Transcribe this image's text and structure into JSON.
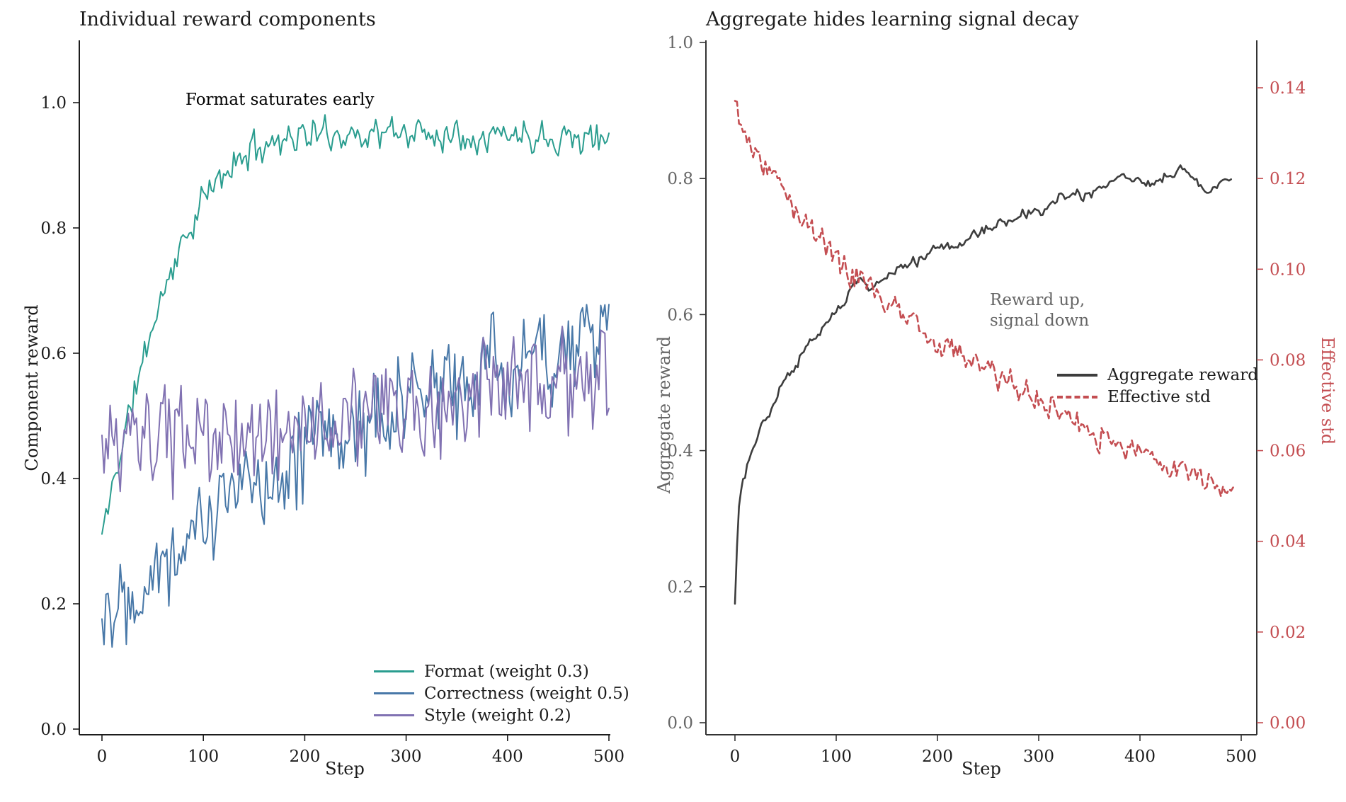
{
  "left_panel": {
    "title": "Individual reward components",
    "xlabel": "Step",
    "ylabel": "Component reward",
    "annotation": {
      "text": "Format saturates early",
      "color": "#2a9d8f"
    },
    "x_tick_labels": [
      "0",
      "100",
      "200",
      "300",
      "400",
      "500"
    ],
    "x_tick_values": [
      0,
      100,
      200,
      300,
      400,
      500
    ],
    "y_tick_labels": [
      "0.0",
      "0.2",
      "0.4",
      "0.6",
      "0.8",
      "1.0"
    ],
    "y_tick_values": [
      0.0,
      0.2,
      0.4,
      0.6,
      0.8,
      1.0
    ],
    "legend": [
      {
        "label": "Format (weight 0.3)",
        "color": "#2a9d8f",
        "dash": false
      },
      {
        "label": "Correctness (weight 0.5)",
        "color": "#4878a8",
        "dash": false
      },
      {
        "label": "Style (weight 0.2)",
        "color": "#8172b2",
        "dash": false
      }
    ]
  },
  "right_panel": {
    "title": "Aggregate hides learning signal decay",
    "xlabel": "Step",
    "ylabel_left": "Aggregate reward",
    "ylabel_right": "Effective std",
    "annotation": {
      "text": "Reward up,\nsignal down",
      "color": "#666666"
    },
    "x_tick_labels": [
      "0",
      "100",
      "200",
      "300",
      "400",
      "500"
    ],
    "x_tick_values": [
      0,
      100,
      200,
      300,
      400,
      500
    ],
    "y_left_tick_labels": [
      "0.0",
      "0.2",
      "0.4",
      "0.6",
      "0.8",
      "1.0"
    ],
    "y_left_tick_values": [
      0.0,
      0.2,
      0.4,
      0.6,
      0.8,
      1.0
    ],
    "y_right_tick_labels": [
      "0.00",
      "0.02",
      "0.04",
      "0.06",
      "0.08",
      "0.10",
      "0.12",
      "0.14"
    ],
    "y_right_tick_values": [
      0.0,
      0.02,
      0.04,
      0.06,
      0.08,
      0.1,
      0.12,
      0.14
    ],
    "legend": [
      {
        "label": "Aggregate reward",
        "color": "#3d3d3d",
        "dash": false
      },
      {
        "label": "Effective std",
        "color": "#c44e52",
        "dash": true
      }
    ]
  },
  "colors": {
    "format": "#2a9d8f",
    "correctness": "#4878a8",
    "style": "#8172b2",
    "aggregate": "#3d3d3d",
    "effective_std": "#c44e52",
    "gray_text": "#666666",
    "black_text": "#1c1c1c",
    "spine": "#1c1c1c"
  },
  "chart_data": [
    {
      "type": "line",
      "title": "Individual reward components",
      "xlabel": "Step",
      "ylabel": "Component reward",
      "xlim": [
        -22,
        501
      ],
      "ylim": [
        0.0,
        1.1
      ],
      "grid": false,
      "legend_position": "lower right",
      "series": [
        {
          "name": "Format (weight 0.3)",
          "color": "#2a9d8f",
          "style": "solid",
          "noise_amp": 0.032,
          "noise_rho": 0.2,
          "seed": 11,
          "clamp_max": 0.995,
          "x": [
            0,
            5,
            10,
            15,
            20,
            25,
            30,
            35,
            40,
            45,
            50,
            60,
            70,
            80,
            90,
            100,
            110,
            120,
            130,
            140,
            150,
            160,
            170,
            180,
            200,
            250,
            300,
            350,
            400,
            450,
            500
          ],
          "y": [
            0.31,
            0.345,
            0.385,
            0.42,
            0.455,
            0.49,
            0.525,
            0.555,
            0.585,
            0.615,
            0.645,
            0.695,
            0.74,
            0.775,
            0.81,
            0.845,
            0.865,
            0.885,
            0.9,
            0.915,
            0.925,
            0.935,
            0.94,
            0.945,
            0.948,
            0.95,
            0.952,
            0.95,
            0.95,
            0.948,
            0.94
          ]
        },
        {
          "name": "Correctness (weight 0.5)",
          "color": "#4878a8",
          "style": "solid",
          "noise_amp": 0.1,
          "noise_rho": 0.15,
          "seed": 22,
          "clamp_max": 1.0,
          "x": [
            0,
            10,
            20,
            30,
            40,
            50,
            60,
            80,
            100,
            125,
            150,
            175,
            200,
            225,
            250,
            275,
            300,
            325,
            350,
            375,
            400,
            425,
            450,
            475,
            500
          ],
          "y": [
            0.19,
            0.21,
            0.225,
            0.235,
            0.25,
            0.26,
            0.27,
            0.3,
            0.335,
            0.365,
            0.395,
            0.42,
            0.445,
            0.465,
            0.485,
            0.5,
            0.52,
            0.535,
            0.55,
            0.565,
            0.58,
            0.595,
            0.61,
            0.625,
            0.64
          ]
        },
        {
          "name": "Style (weight 0.2)",
          "color": "#8172b2",
          "style": "solid",
          "noise_amp": 0.1,
          "noise_rho": 0.15,
          "seed": 33,
          "clamp_max": 1.0,
          "x": [
            0,
            25,
            50,
            75,
            100,
            125,
            150,
            175,
            200,
            225,
            250,
            275,
            300,
            325,
            350,
            375,
            400,
            425,
            450,
            475,
            500
          ],
          "y": [
            0.44,
            0.45,
            0.455,
            0.46,
            0.462,
            0.465,
            0.47,
            0.475,
            0.48,
            0.487,
            0.494,
            0.5,
            0.507,
            0.514,
            0.52,
            0.527,
            0.534,
            0.54,
            0.547,
            0.553,
            0.56
          ]
        }
      ]
    },
    {
      "type": "line",
      "title": "Aggregate hides learning signal decay",
      "xlabel": "Step",
      "ylabel_left": "Aggregate reward",
      "ylabel_right": "Effective std",
      "xlim": [
        -29,
        510
      ],
      "ylim_left": [
        0.0,
        1.0
      ],
      "ylim_right": [
        0.0,
        0.15
      ],
      "grid": false,
      "legend_position": "center right",
      "series": [
        {
          "name": "Aggregate reward",
          "axis": "left",
          "color": "#3d3d3d",
          "style": "solid",
          "noise_amp": 0.01,
          "noise_rho": 0.65,
          "seed": 44,
          "clamp_max": 1.0,
          "x": [
            0,
            1,
            3,
            5,
            8,
            12,
            16,
            20,
            25,
            30,
            40,
            50,
            60,
            70,
            80,
            90,
            100,
            110,
            118,
            126,
            134,
            142,
            150,
            160,
            170,
            180,
            190,
            200,
            215,
            230,
            245,
            260,
            275,
            290,
            305,
            320,
            335,
            350,
            365,
            380,
            390,
            400,
            415,
            430,
            445,
            455,
            465,
            475,
            490
          ],
          "y": [
            0.175,
            0.22,
            0.3,
            0.335,
            0.355,
            0.375,
            0.395,
            0.41,
            0.43,
            0.447,
            0.477,
            0.503,
            0.527,
            0.549,
            0.569,
            0.587,
            0.606,
            0.628,
            0.645,
            0.648,
            0.637,
            0.648,
            0.648,
            0.666,
            0.678,
            0.682,
            0.69,
            0.694,
            0.702,
            0.712,
            0.722,
            0.728,
            0.735,
            0.752,
            0.752,
            0.768,
            0.773,
            0.778,
            0.788,
            0.8,
            0.798,
            0.795,
            0.8,
            0.804,
            0.81,
            0.806,
            0.778,
            0.795,
            0.8
          ]
        },
        {
          "name": "Effective std",
          "axis": "right",
          "color": "#c44e52",
          "style": "dashed",
          "noise_amp": 0.0035,
          "noise_rho": 0.3,
          "seed": 55,
          "clamp_max": 0.15,
          "x": [
            0,
            10,
            20,
            30,
            40,
            50,
            60,
            75,
            90,
            100,
            115,
            125,
            140,
            150,
            165,
            180,
            200,
            220,
            240,
            260,
            280,
            300,
            320,
            340,
            360,
            380,
            400,
            420,
            440,
            460,
            475,
            492
          ],
          "y": [
            0.136,
            0.131,
            0.127,
            0.1235,
            0.12,
            0.1165,
            0.1135,
            0.109,
            0.105,
            0.1025,
            0.0995,
            0.0975,
            0.0945,
            0.0925,
            0.09,
            0.0875,
            0.0845,
            0.0815,
            0.079,
            0.0765,
            0.074,
            0.071,
            0.0685,
            0.066,
            0.0635,
            0.0615,
            0.0595,
            0.0575,
            0.0555,
            0.054,
            0.0535,
            0.0505
          ]
        }
      ]
    }
  ]
}
